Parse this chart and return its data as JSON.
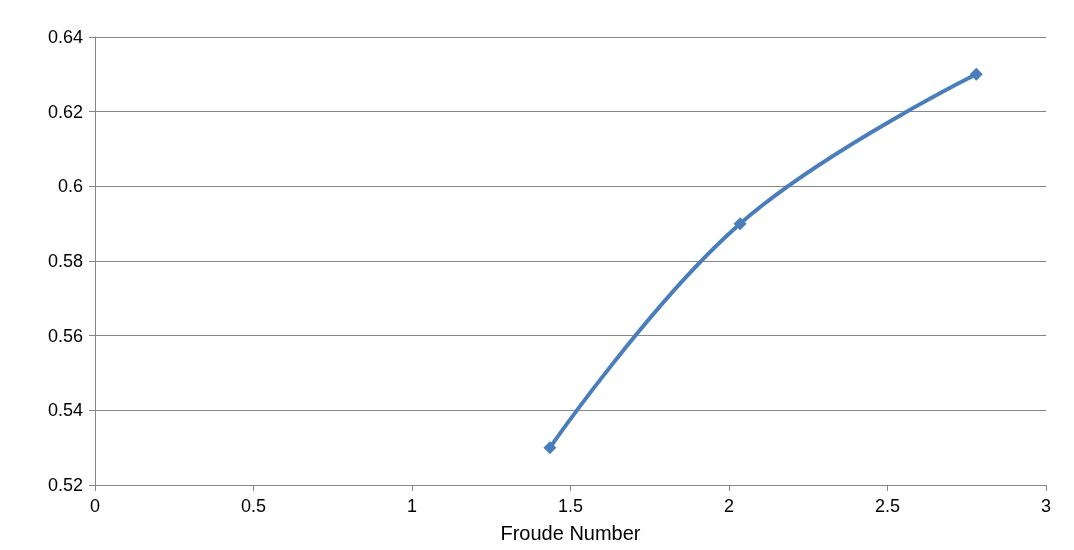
{
  "chart_data": {
    "type": "line",
    "xlabel": "Froude Number",
    "x": [
      1.435,
      2.035,
      2.78
    ],
    "series": [
      {
        "color": "#4a7ebb",
        "values": [
          0.53,
          0.59,
          0.63
        ]
      }
    ],
    "xlim": [
      0,
      3
    ],
    "xticks": [
      0,
      0.5,
      1,
      1.5,
      2,
      2.5,
      3
    ],
    "ylim": [
      0.52,
      0.64
    ],
    "yticks": [
      0.52,
      0.54,
      0.56,
      0.58,
      0.6,
      0.62,
      0.64
    ],
    "grid": "y",
    "marker": "diamond",
    "line_style": "solid"
  }
}
